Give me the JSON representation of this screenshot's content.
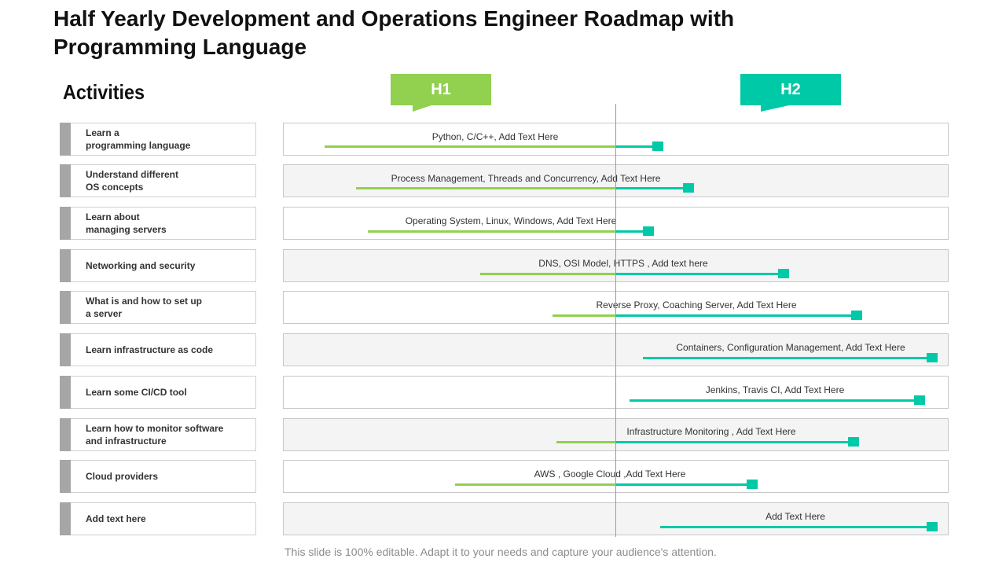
{
  "title": "Half Yearly Development and Operations Engineer Roadmap with Programming Language",
  "activities_heading": "Activities",
  "halves": {
    "h1": "H1",
    "h2": "H2"
  },
  "colors": {
    "h1": "#92d050",
    "h2": "#00c9a7",
    "label_bar": "#a6a6a6"
  },
  "rows": [
    {
      "activity": "Learn a\nprogramming language",
      "text": "Python, C/C++,  Add Text Here"
    },
    {
      "activity": "Understand different\nOS concepts",
      "text": "Process Management,  Threads and Concurrency,  Add Text Here"
    },
    {
      "activity": "Learn about\nmanaging servers",
      "text": "Operating System,  Linux, Windows, Add Text Here"
    },
    {
      "activity": "Networking and security",
      "text": "DNS,  OSI Model,  HTTPS , Add text here"
    },
    {
      "activity": "What is and how to set up\na server",
      "text": "Reverse  Proxy,  Coaching Server,  Add Text Here"
    },
    {
      "activity": "Learn infrastructure  as code",
      "text": "Containers, Configuration Management,  Add Text Here"
    },
    {
      "activity": "Learn some CI/CD tool",
      "text": "Jenkins,  Travis CI,  Add Text Here"
    },
    {
      "activity": "Learn how to monitor software\nand infrastructure",
      "text": "Infrastructure Monitoring , Add Text Here"
    },
    {
      "activity": "Cloud providers",
      "text": "AWS  , Google Cloud ,Add Text Here"
    },
    {
      "activity": "Add text here",
      "text": "Add Text Here"
    }
  ],
  "footer": "This slide is 100% editable. Adapt it to your needs and capture your audience's attention."
}
